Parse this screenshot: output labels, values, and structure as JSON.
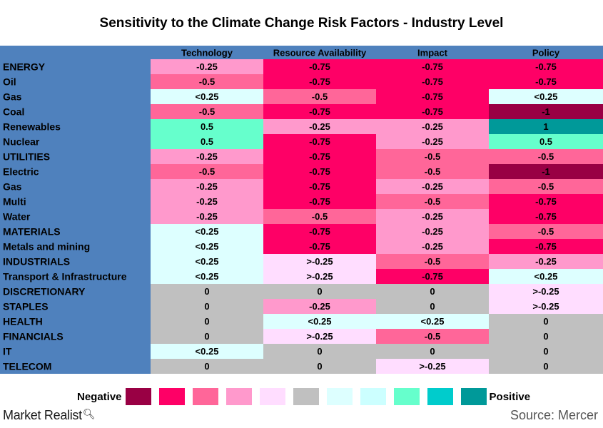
{
  "chart_data": {
    "type": "heatmap",
    "title": "Sensitivity to the Climate Change Risk Factors - Industry Level",
    "columns": [
      "Technology",
      "Resource Availability",
      "Impact",
      "Policy"
    ],
    "rows": [
      {
        "name": "ENERGY",
        "values": [
          "-0.25",
          "-0.75",
          "-0.75",
          "-0.75"
        ]
      },
      {
        "name": "Oil",
        "values": [
          "-0.5",
          "-0.75",
          "-0.75",
          "-0.75"
        ]
      },
      {
        "name": "Gas",
        "values": [
          "<0.25",
          "-0.5",
          "-0.75",
          "<0.25"
        ]
      },
      {
        "name": "Coal",
        "values": [
          "-0.5",
          "-0.75",
          "-0.75",
          "-1"
        ]
      },
      {
        "name": "Renewables",
        "values": [
          "0.5",
          "-0.25",
          "-0.25",
          "1"
        ]
      },
      {
        "name": "Nuclear",
        "values": [
          "0.5",
          "-0.75",
          "-0.25",
          "0.5"
        ]
      },
      {
        "name": "UTILITIES",
        "values": [
          "-0.25",
          "-0.75",
          "-0.5",
          "-0.5"
        ]
      },
      {
        "name": "Electric",
        "values": [
          "-0.5",
          "-0.75",
          "-0.5",
          "-1"
        ]
      },
      {
        "name": "Gas",
        "values": [
          "-0.25",
          "-0.75",
          "-0.25",
          "-0.5"
        ]
      },
      {
        "name": "Multi",
        "values": [
          "-0.25",
          "-0.75",
          "-0.5",
          "-0.75"
        ]
      },
      {
        "name": "Water",
        "values": [
          "-0.25",
          "-0.5",
          "-0.25",
          "-0.75"
        ]
      },
      {
        "name": "MATERIALS",
        "values": [
          "<0.25",
          "-0.75",
          "-0.25",
          "-0.5"
        ]
      },
      {
        "name": "Metals and mining",
        "values": [
          "<0.25",
          "-0.75",
          "-0.25",
          "-0.75"
        ]
      },
      {
        "name": "INDUSTRIALS",
        "values": [
          "<0.25",
          ">-0.25",
          "-0.5",
          "-0.25"
        ]
      },
      {
        "name": "Transport & Infrastructure",
        "values": [
          "<0.25",
          ">-0.25",
          "-0.75",
          "<0.25"
        ]
      },
      {
        "name": "DISCRETIONARY",
        "values": [
          "0",
          "0",
          "0",
          ">-0.25"
        ]
      },
      {
        "name": "STAPLES",
        "values": [
          "0",
          "-0.25",
          "0",
          ">-0.25"
        ]
      },
      {
        "name": "HEALTH",
        "values": [
          "0",
          "<0.25",
          "<0.25",
          "0"
        ]
      },
      {
        "name": "FINANCIALS",
        "values": [
          "0",
          ">-0.25",
          "-0.5",
          "0"
        ]
      },
      {
        "name": "IT",
        "values": [
          "<0.25",
          "0",
          "0",
          "0"
        ]
      },
      {
        "name": "TELECOM",
        "values": [
          "0",
          "0",
          ">-0.25",
          "0"
        ]
      }
    ],
    "legend": {
      "negative_label": "Negative",
      "positive_label": "Positive",
      "placement": "bottom",
      "colors": [
        "#990044",
        "#fe0066",
        "#ff6699",
        "#ff99cc",
        "#ffddff",
        "#c0c0c0",
        "#ddffff",
        "#ccffff",
        "#66ffcc",
        "#00cccc",
        "#009999"
      ]
    },
    "value_colors": {
      "-1": "#990044",
      "-0.75": "#fe0066",
      "-0.5": "#ff6699",
      "-0.25": "#ff99cc",
      ">-0.25": "#ffddff",
      "0": "#c0c0c0",
      "<0.25": "#ddffff",
      "0.5": "#66ffcc",
      "1": "#009999"
    },
    "header_color": "#4f81bd"
  },
  "brand": "Market Realist",
  "source": "Source: Mercer"
}
